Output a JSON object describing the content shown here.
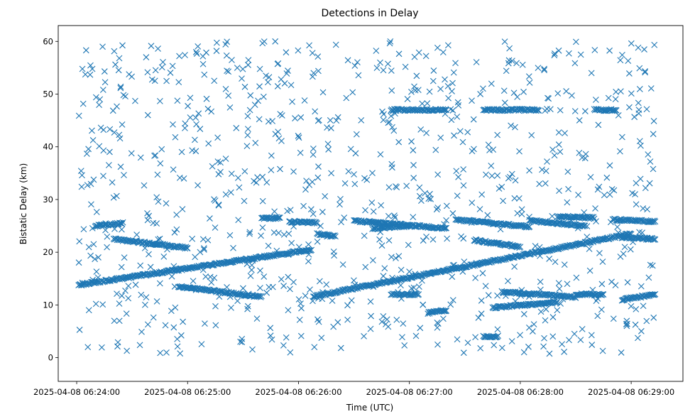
{
  "chart_data": {
    "type": "scatter",
    "title": "Detections in Delay",
    "xlabel": "Time (UTC)",
    "ylabel": "Bistatic Delay (km)",
    "marker": "x",
    "color": "#1f77b4",
    "grid": false,
    "legend": "none",
    "x_is_time": true,
    "xlim": [
      "2025-04-08 06:23:50",
      "2025-04-08 06:29:28"
    ],
    "ylim": [
      -4.5,
      63
    ],
    "x_ticks": [
      "2025-04-08 06:24:00",
      "2025-04-08 06:25:00",
      "2025-04-08 06:26:00",
      "2025-04-08 06:27:00",
      "2025-04-08 06:28:00",
      "2025-04-08 06:29:00"
    ],
    "y_ticks": [
      0,
      10,
      20,
      30,
      40,
      50,
      60
    ],
    "tracks": [
      {
        "from": [
          "2025-04-08 06:24:01",
          13.8
        ],
        "to": [
          "2025-04-08 06:26:07",
          20.5
        ]
      },
      {
        "from": [
          "2025-04-08 06:26:08",
          11.6
        ],
        "to": [
          "2025-04-08 06:29:00",
          23.5
        ]
      },
      {
        "from": [
          "2025-04-08 06:24:10",
          25.0
        ],
        "to": [
          "2025-04-08 06:24:25",
          25.5
        ]
      },
      {
        "from": [
          "2025-04-08 06:24:20",
          22.5
        ],
        "to": [
          "2025-04-08 06:25:00",
          20.8
        ]
      },
      {
        "from": [
          "2025-04-08 06:24:55",
          13.5
        ],
        "to": [
          "2025-04-08 06:25:40",
          11.5
        ]
      },
      {
        "from": [
          "2025-04-08 06:25:40",
          26.5
        ],
        "to": [
          "2025-04-08 06:25:50",
          26.5
        ]
      },
      {
        "from": [
          "2025-04-08 06:25:55",
          25.8
        ],
        "to": [
          "2025-04-08 06:26:10",
          25.6
        ]
      },
      {
        "from": [
          "2025-04-08 06:26:10",
          23.5
        ],
        "to": [
          "2025-04-08 06:26:20",
          23.0
        ]
      },
      {
        "from": [
          "2025-04-08 06:26:30",
          26.0
        ],
        "to": [
          "2025-04-08 06:27:20",
          24.5
        ]
      },
      {
        "from": [
          "2025-04-08 06:26:40",
          24.5
        ],
        "to": [
          "2025-04-08 06:27:00",
          25.0
        ]
      },
      {
        "from": [
          "2025-04-08 06:26:50",
          47.0
        ],
        "to": [
          "2025-04-08 06:27:20",
          47.0
        ]
      },
      {
        "from": [
          "2025-04-08 06:27:25",
          26.2
        ],
        "to": [
          "2025-04-08 06:28:05",
          24.8
        ]
      },
      {
        "from": [
          "2025-04-08 06:27:35",
          22.3
        ],
        "to": [
          "2025-04-08 06:28:00",
          21.0
        ]
      },
      {
        "from": [
          "2025-04-08 06:27:40",
          47.0
        ],
        "to": [
          "2025-04-08 06:28:10",
          47.0
        ]
      },
      {
        "from": [
          "2025-04-08 06:27:45",
          9.5
        ],
        "to": [
          "2025-04-08 06:28:20",
          10.5
        ]
      },
      {
        "from": [
          "2025-04-08 06:27:50",
          12.5
        ],
        "to": [
          "2025-04-08 06:28:30",
          11.5
        ]
      },
      {
        "from": [
          "2025-04-08 06:28:05",
          26.0
        ],
        "to": [
          "2025-04-08 06:28:35",
          25.0
        ]
      },
      {
        "from": [
          "2025-04-08 06:28:20",
          26.8
        ],
        "to": [
          "2025-04-08 06:28:40",
          26.5
        ]
      },
      {
        "from": [
          "2025-04-08 06:28:30",
          12.0
        ],
        "to": [
          "2025-04-08 06:28:45",
          12.0
        ]
      },
      {
        "from": [
          "2025-04-08 06:28:50",
          26.2
        ],
        "to": [
          "2025-04-08 06:29:13",
          25.8
        ]
      },
      {
        "from": [
          "2025-04-08 06:28:55",
          22.8
        ],
        "to": [
          "2025-04-08 06:29:13",
          22.5
        ]
      },
      {
        "from": [
          "2025-04-08 06:28:55",
          11.0
        ],
        "to": [
          "2025-04-08 06:29:13",
          12.0
        ]
      },
      {
        "from": [
          "2025-04-08 06:28:40",
          47.0
        ],
        "to": [
          "2025-04-08 06:28:52",
          47.0
        ]
      },
      {
        "from": [
          "2025-04-08 06:27:40",
          4.0
        ],
        "to": [
          "2025-04-08 06:27:48",
          4.0
        ]
      },
      {
        "from": [
          "2025-04-08 06:27:10",
          8.5
        ],
        "to": [
          "2025-04-08 06:27:20",
          9.0
        ]
      },
      {
        "from": [
          "2025-04-08 06:26:50",
          12.0
        ],
        "to": [
          "2025-04-08 06:27:05",
          12.0
        ]
      }
    ],
    "scattered_points": {
      "x_range": [
        "2025-04-08 06:24:01",
        "2025-04-08 06:29:13"
      ],
      "y_range": [
        0.5,
        60
      ],
      "count": 900
    }
  }
}
